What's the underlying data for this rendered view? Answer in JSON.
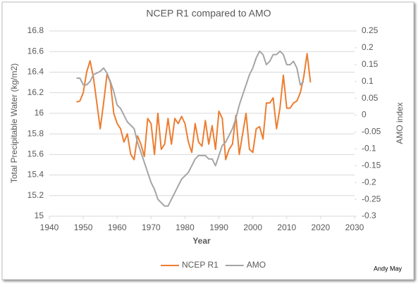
{
  "chart_data": {
    "type": "line",
    "title": "NCEP R1 compared to AMO",
    "x_label": "Year",
    "y_label": "Total Precipitable Water (kg/m2)",
    "y2_label": "AMO index",
    "annotation": "Andy May",
    "x": [
      1948,
      1949,
      1950,
      1951,
      1952,
      1953,
      1954,
      1955,
      1956,
      1957,
      1958,
      1959,
      1960,
      1961,
      1962,
      1963,
      1964,
      1965,
      1966,
      1967,
      1968,
      1969,
      1970,
      1971,
      1972,
      1973,
      1974,
      1975,
      1976,
      1977,
      1978,
      1979,
      1980,
      1981,
      1982,
      1983,
      1984,
      1985,
      1986,
      1987,
      1988,
      1989,
      1990,
      1991,
      1992,
      1993,
      1994,
      1995,
      1996,
      1997,
      1998,
      1999,
      2000,
      2001,
      2002,
      2003,
      2004,
      2005,
      2006,
      2007,
      2008,
      2009,
      2010,
      2011,
      2012,
      2013,
      2014,
      2015,
      2016,
      2017
    ],
    "series": [
      {
        "name": "NCEP R1",
        "color": "#ed7d31",
        "values": [
          16.11,
          16.12,
          16.2,
          16.4,
          16.51,
          16.35,
          16.1,
          15.85,
          16.1,
          16.38,
          16.3,
          16.0,
          15.9,
          15.85,
          15.72,
          15.8,
          15.6,
          15.55,
          15.78,
          15.7,
          15.58,
          15.95,
          15.9,
          15.6,
          16.0,
          15.65,
          15.7,
          15.95,
          15.7,
          15.95,
          15.9,
          15.97,
          15.9,
          15.72,
          15.62,
          15.9,
          15.72,
          15.68,
          15.93,
          15.7,
          15.88,
          15.65,
          16.02,
          15.95,
          15.55,
          15.65,
          15.7,
          15.98,
          15.6,
          15.8,
          16.0,
          15.65,
          15.62,
          15.85,
          15.87,
          15.75,
          16.1,
          16.1,
          16.15,
          15.85,
          16.05,
          16.37,
          16.05,
          16.05,
          16.1,
          16.12,
          16.2,
          16.35,
          16.58,
          16.3
        ]
      },
      {
        "name": "AMO",
        "color": "#a5a5a5",
        "axis": "y2",
        "values": [
          0.11,
          0.11,
          0.09,
          0.09,
          0.1,
          0.12,
          0.125,
          0.13,
          0.14,
          0.125,
          0.1,
          0.07,
          0.03,
          0.02,
          0.0,
          -0.02,
          -0.03,
          -0.04,
          -0.08,
          -0.11,
          -0.14,
          -0.17,
          -0.2,
          -0.22,
          -0.25,
          -0.26,
          -0.27,
          -0.27,
          -0.25,
          -0.23,
          -0.21,
          -0.19,
          -0.18,
          -0.17,
          -0.15,
          -0.13,
          -0.12,
          -0.12,
          -0.12,
          -0.13,
          -0.13,
          -0.15,
          -0.12,
          -0.09,
          -0.08,
          -0.06,
          -0.04,
          -0.01,
          0.03,
          0.06,
          0.09,
          0.12,
          0.14,
          0.17,
          0.19,
          0.18,
          0.15,
          0.16,
          0.18,
          0.18,
          0.19,
          0.18,
          0.15,
          0.15,
          0.16,
          0.14,
          0.09,
          0.1,
          null,
          null
        ]
      }
    ],
    "xlim": [
      1940,
      2030
    ],
    "xticks": [
      1940,
      1950,
      1960,
      1970,
      1980,
      1990,
      2000,
      2010,
      2020,
      2030
    ],
    "ylim": [
      15,
      16.8
    ],
    "yticks": [
      15,
      15.2,
      15.4,
      15.6,
      15.8,
      16,
      16.2,
      16.4,
      16.6,
      16.8
    ],
    "y2lim": [
      -0.3,
      0.25
    ],
    "y2ticks": [
      -0.3,
      -0.25,
      -0.2,
      -0.15,
      -0.1,
      -0.05,
      0,
      0.05,
      0.1,
      0.15,
      0.2,
      0.25
    ],
    "grid": true,
    "legend": "bottom"
  }
}
